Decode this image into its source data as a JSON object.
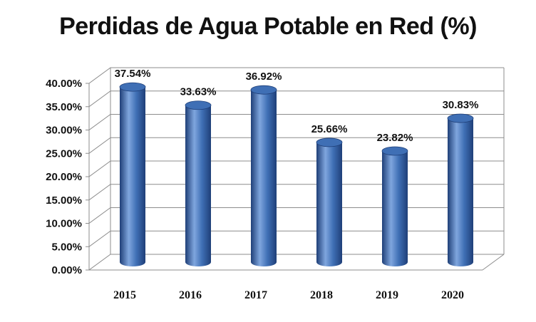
{
  "chart_data": {
    "type": "bar",
    "title": "Perdidas de Agua Potable en Red (%)",
    "categories": [
      "2015",
      "2016",
      "2017",
      "2018",
      "2019",
      "2020"
    ],
    "values": [
      37.54,
      33.63,
      36.92,
      25.66,
      23.82,
      30.83
    ],
    "value_labels": [
      "37.54%",
      "33.63%",
      "36.92%",
      "25.66%",
      "23.82%",
      "30.83%"
    ],
    "y_ticks": [
      "0.00%",
      "5.00%",
      "10.00%",
      "15.00%",
      "20.00%",
      "25.00%",
      "30.00%",
      "35.00%",
      "40.00%"
    ],
    "ylim": [
      0,
      40
    ],
    "xlabel": "",
    "ylabel": "",
    "grid": true,
    "legend": "none",
    "bar_shape": "cylinder-3d",
    "colors": {
      "bar": "#3f6fb5",
      "bar_dark": "#1f3f78",
      "bar_light": "#7fa6de",
      "grid": "#8c8c8c"
    }
  }
}
